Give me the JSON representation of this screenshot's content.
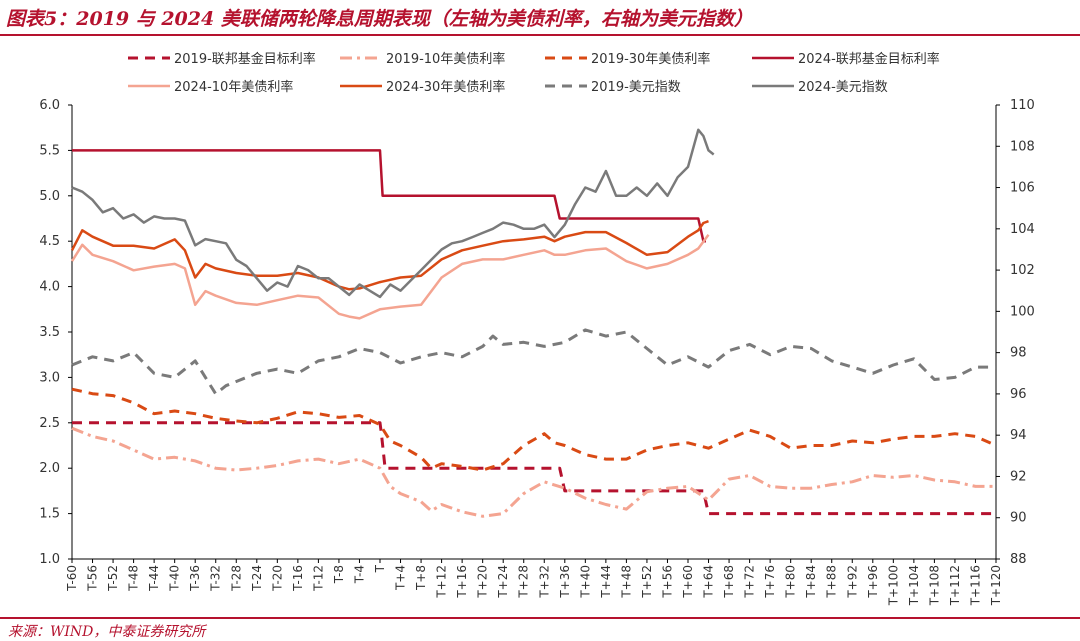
{
  "header": {
    "title": "图表5：2019 与 2024 美联储两轮降息周期表现（左轴为美债利率，右轴为美元指数）"
  },
  "footer": {
    "source": "来源：WIND，中泰证券研究所"
  },
  "colors": {
    "accent": "#b5122e",
    "ffr": "#b5122e",
    "t10": "#f4a491",
    "t30": "#d94a14",
    "dxy": "#7a7a7a"
  },
  "chart_data": {
    "type": "line",
    "title": "",
    "xlabel": "",
    "ylabel": "",
    "y_left_lim": [
      1.0,
      6.0
    ],
    "y_left_ticks": [
      "1.0",
      "1.5",
      "2.0",
      "2.5",
      "3.0",
      "3.5",
      "4.0",
      "4.5",
      "5.0",
      "5.5",
      "6.0"
    ],
    "y_right_lim": [
      88,
      110
    ],
    "y_right_ticks": [
      "88",
      "90",
      "92",
      "94",
      "96",
      "98",
      "100",
      "102",
      "104",
      "106",
      "108",
      "110"
    ],
    "x_range": [
      -60,
      120
    ],
    "x_tick_labels": [
      "T-60",
      "T-56",
      "T-52",
      "T-48",
      "T-44",
      "T-40",
      "T-36",
      "T-32",
      "T-28",
      "T-24",
      "T-20",
      "T-16",
      "T-12",
      "T-8",
      "T-4",
      "T",
      "T+4",
      "T+8",
      "T+12",
      "T+16",
      "T+20",
      "T+24",
      "T+28",
      "T+32",
      "T+36",
      "T+40",
      "T+44",
      "T+48",
      "T+52",
      "T+56",
      "T+60",
      "T+64",
      "T+68",
      "T+72",
      "T+76",
      "T+80",
      "T+84",
      "T+88",
      "T+92",
      "T+96",
      "T+100",
      "T+104",
      "T+108",
      "T+112",
      "T+116",
      "T+120"
    ],
    "legend_position": "top",
    "series": [
      {
        "name": "2019-联邦基金目标利率",
        "axis": "left",
        "style": "dash",
        "color": "#b5122e",
        "x": [
          -60,
          0,
          0.3,
          1,
          35,
          36,
          63,
          64,
          120
        ],
        "y": [
          2.5,
          2.5,
          2.37,
          2.0,
          2.0,
          1.75,
          1.75,
          1.5,
          1.5
        ]
      },
      {
        "name": "2019-10年美债利率",
        "axis": "left",
        "style": "dashdot",
        "color": "#f4a491",
        "x": [
          -60,
          -56,
          -52,
          -48,
          -44,
          -40,
          -36,
          -32,
          -28,
          -24,
          -20,
          -16,
          -12,
          -8,
          -4,
          0,
          2,
          4,
          8,
          10,
          12,
          16,
          20,
          24,
          28,
          32,
          36,
          40,
          44,
          48,
          52,
          56,
          60,
          64,
          68,
          72,
          76,
          80,
          84,
          88,
          92,
          96,
          100,
          104,
          108,
          112,
          116,
          120
        ],
        "y": [
          2.44,
          2.35,
          2.3,
          2.2,
          2.1,
          2.12,
          2.08,
          2.0,
          1.98,
          2.0,
          2.03,
          2.08,
          2.1,
          2.05,
          2.1,
          2.0,
          1.8,
          1.72,
          1.63,
          1.53,
          1.6,
          1.52,
          1.47,
          1.5,
          1.72,
          1.85,
          1.78,
          1.67,
          1.6,
          1.55,
          1.74,
          1.78,
          1.8,
          1.65,
          1.88,
          1.92,
          1.8,
          1.78,
          1.78,
          1.82,
          1.85,
          1.92,
          1.9,
          1.92,
          1.87,
          1.85,
          1.8,
          1.8
        ]
      },
      {
        "name": "2019-30年美债利率",
        "axis": "left",
        "style": "dash",
        "color": "#d94a14",
        "x": [
          -60,
          -56,
          -52,
          -48,
          -44,
          -40,
          -36,
          -32,
          -28,
          -24,
          -20,
          -16,
          -12,
          -8,
          -4,
          0,
          2,
          4,
          8,
          10,
          12,
          16,
          20,
          24,
          28,
          32,
          34,
          36,
          40,
          44,
          48,
          52,
          56,
          60,
          64,
          68,
          72,
          76,
          80,
          84,
          88,
          92,
          96,
          100,
          104,
          108,
          112,
          116,
          120
        ],
        "y": [
          2.87,
          2.82,
          2.8,
          2.72,
          2.6,
          2.63,
          2.6,
          2.55,
          2.52,
          2.5,
          2.55,
          2.62,
          2.6,
          2.56,
          2.58,
          2.48,
          2.3,
          2.25,
          2.12,
          2.0,
          2.05,
          2.02,
          1.98,
          2.05,
          2.25,
          2.38,
          2.28,
          2.25,
          2.15,
          2.1,
          2.1,
          2.2,
          2.25,
          2.28,
          2.22,
          2.32,
          2.42,
          2.35,
          2.22,
          2.25,
          2.25,
          2.3,
          2.28,
          2.32,
          2.35,
          2.35,
          2.38,
          2.35,
          2.25
        ]
      },
      {
        "name": "2024-联邦基金目标利率",
        "axis": "left",
        "style": "solid",
        "color": "#b5122e",
        "x": [
          -60,
          0,
          0.5,
          34,
          35,
          62,
          63,
          63.5
        ],
        "y": [
          5.5,
          5.5,
          5.0,
          5.0,
          4.75,
          4.75,
          4.5,
          4.5
        ]
      },
      {
        "name": "2024-10年美债利率",
        "axis": "left",
        "style": "solid",
        "color": "#f4a491",
        "x": [
          -60,
          -58,
          -56,
          -52,
          -48,
          -44,
          -40,
          -38,
          -36,
          -34,
          -32,
          -28,
          -24,
          -20,
          -16,
          -12,
          -8,
          -6,
          -4,
          0,
          4,
          8,
          12,
          16,
          20,
          24,
          28,
          32,
          34,
          36,
          40,
          44,
          48,
          52,
          56,
          60,
          62,
          64
        ],
        "y": [
          4.28,
          4.46,
          4.35,
          4.28,
          4.18,
          4.22,
          4.25,
          4.2,
          3.8,
          3.95,
          3.9,
          3.82,
          3.8,
          3.85,
          3.9,
          3.88,
          3.7,
          3.67,
          3.65,
          3.75,
          3.78,
          3.8,
          4.1,
          4.25,
          4.3,
          4.3,
          4.35,
          4.4,
          4.35,
          4.35,
          4.4,
          4.42,
          4.28,
          4.2,
          4.25,
          4.35,
          4.42,
          4.57
        ]
      },
      {
        "name": "2024-30年美债利率",
        "axis": "left",
        "style": "solid",
        "color": "#d94a14",
        "x": [
          -60,
          -58,
          -56,
          -52,
          -48,
          -44,
          -40,
          -38,
          -36,
          -34,
          -32,
          -28,
          -24,
          -20,
          -16,
          -12,
          -8,
          -6,
          -4,
          0,
          4,
          8,
          12,
          16,
          20,
          24,
          28,
          32,
          34,
          36,
          40,
          44,
          48,
          52,
          56,
          60,
          62,
          63,
          64
        ],
        "y": [
          4.4,
          4.62,
          4.55,
          4.45,
          4.45,
          4.42,
          4.52,
          4.4,
          4.1,
          4.25,
          4.2,
          4.15,
          4.12,
          4.12,
          4.15,
          4.1,
          4.0,
          3.97,
          3.98,
          4.05,
          4.1,
          4.12,
          4.3,
          4.4,
          4.45,
          4.5,
          4.52,
          4.55,
          4.5,
          4.55,
          4.6,
          4.6,
          4.48,
          4.35,
          4.38,
          4.55,
          4.62,
          4.7,
          4.72
        ]
      },
      {
        "name": "2019-美元指数",
        "axis": "right",
        "style": "dash",
        "color": "#7a7a7a",
        "x": [
          -60,
          -56,
          -52,
          -48,
          -44,
          -40,
          -36,
          -32,
          -30,
          -28,
          -24,
          -20,
          -16,
          -12,
          -8,
          -4,
          0,
          4,
          8,
          12,
          16,
          20,
          22,
          24,
          28,
          32,
          36,
          40,
          44,
          48,
          52,
          56,
          60,
          64,
          68,
          72,
          76,
          80,
          84,
          88,
          92,
          96,
          100,
          104,
          108,
          112,
          116,
          120
        ],
        "y": [
          97.4,
          97.8,
          97.6,
          98.0,
          97.0,
          96.8,
          97.6,
          96.0,
          96.4,
          96.6,
          97.0,
          97.2,
          97.0,
          97.6,
          97.8,
          98.2,
          98.0,
          97.5,
          97.8,
          98.0,
          97.8,
          98.3,
          98.8,
          98.4,
          98.5,
          98.3,
          98.5,
          99.1,
          98.8,
          99.0,
          98.2,
          97.4,
          97.8,
          97.3,
          98.1,
          98.4,
          97.9,
          98.3,
          98.2,
          97.6,
          97.3,
          97.0,
          97.4,
          97.7,
          96.7,
          96.8,
          97.3,
          97.3
        ]
      },
      {
        "name": "2024-美元指数",
        "axis": "right",
        "style": "solid",
        "color": "#7a7a7a",
        "x": [
          -60,
          -58,
          -56,
          -54,
          -52,
          -50,
          -48,
          -46,
          -44,
          -42,
          -40,
          -38,
          -36,
          -34,
          -32,
          -30,
          -28,
          -26,
          -24,
          -22,
          -20,
          -18,
          -16,
          -14,
          -12,
          -10,
          -8,
          -6,
          -4,
          -2,
          0,
          2,
          4,
          6,
          8,
          10,
          12,
          14,
          16,
          18,
          20,
          22,
          24,
          26,
          28,
          30,
          32,
          34,
          36,
          38,
          40,
          42,
          44,
          46,
          48,
          50,
          52,
          54,
          56,
          58,
          60,
          62,
          63,
          64,
          65
        ],
        "y": [
          106.0,
          105.8,
          105.4,
          104.8,
          105.0,
          104.5,
          104.7,
          104.3,
          104.6,
          104.5,
          104.5,
          104.4,
          103.2,
          103.5,
          103.4,
          103.3,
          102.5,
          102.2,
          101.6,
          101.0,
          101.4,
          101.2,
          102.2,
          102.0,
          101.6,
          101.6,
          101.2,
          100.8,
          101.3,
          101.0,
          100.7,
          101.3,
          101.0,
          101.5,
          102.0,
          102.5,
          103.0,
          103.3,
          103.4,
          103.6,
          103.8,
          104.0,
          104.3,
          104.2,
          104.0,
          104.0,
          104.2,
          103.6,
          104.2,
          105.2,
          106.0,
          105.8,
          106.8,
          105.6,
          105.6,
          106.0,
          105.6,
          106.2,
          105.6,
          106.5,
          107.0,
          108.8,
          108.5,
          107.8,
          107.6
        ]
      }
    ]
  }
}
